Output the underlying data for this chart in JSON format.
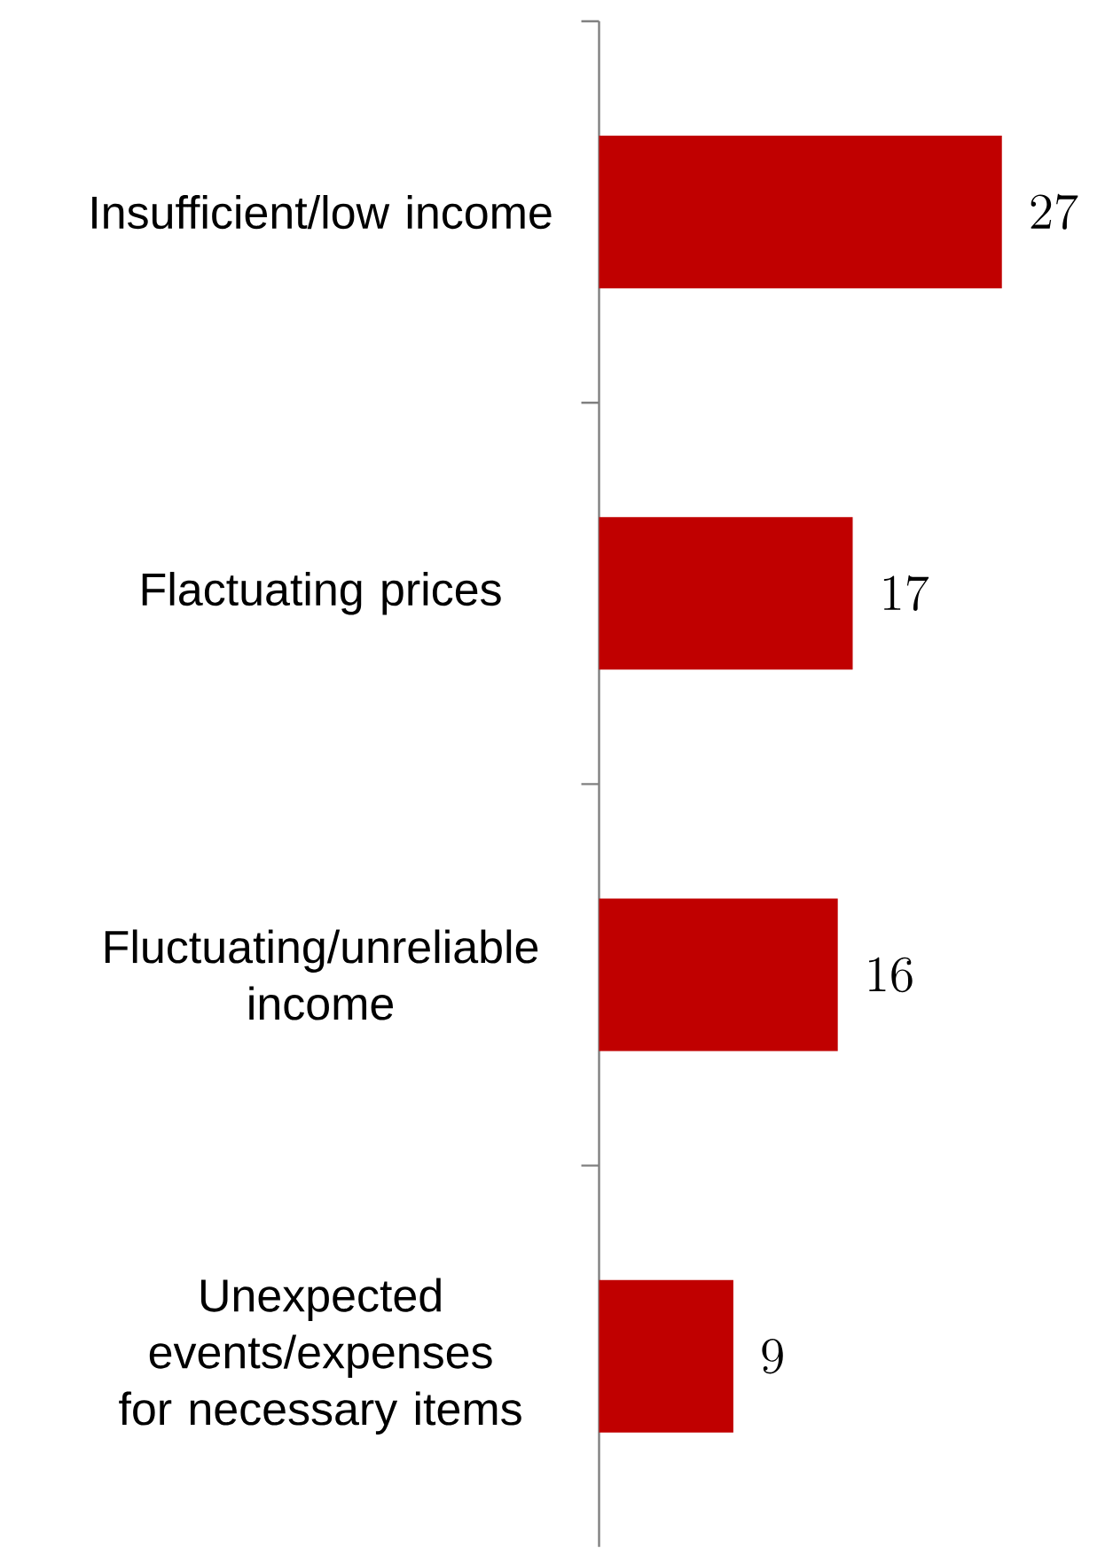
{
  "chart_data": {
    "type": "bar",
    "orientation": "horizontal",
    "categories": [
      "Insufficient/low income",
      "Flactuating prices",
      "Fluctuating/unreliable income",
      "Unexpected events/expenses for necessary items"
    ],
    "values": [
      27,
      17,
      16,
      9
    ],
    "color": "#c00000",
    "data_labels": true
  }
}
